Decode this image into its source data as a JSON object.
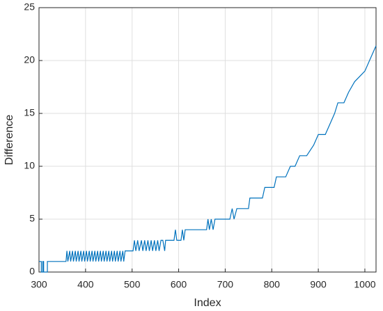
{
  "chart_data": {
    "type": "line",
    "xlabel": "Index",
    "ylabel": "Difference",
    "x": [
      300,
      305,
      305,
      308,
      308,
      310,
      310,
      318,
      318,
      358,
      360,
      362,
      366,
      368,
      372,
      374,
      378,
      380,
      384,
      386,
      390,
      392,
      396,
      398,
      402,
      404,
      408,
      410,
      414,
      416,
      420,
      422,
      426,
      428,
      432,
      434,
      438,
      440,
      444,
      446,
      450,
      452,
      456,
      458,
      462,
      464,
      468,
      470,
      474,
      476,
      480,
      482,
      485,
      502,
      505,
      508,
      512,
      515,
      520,
      523,
      527,
      530,
      534,
      537,
      541,
      544,
      548,
      551,
      555,
      558,
      562,
      566,
      570,
      572,
      590,
      593,
      596,
      605,
      608,
      611,
      614,
      618,
      660,
      663,
      666,
      670,
      674,
      678,
      710,
      715,
      719,
      725,
      750,
      753,
      780,
      785,
      805,
      810,
      830,
      840,
      850,
      860,
      875,
      890,
      900,
      915,
      925,
      935,
      942,
      955,
      965,
      978,
      1000,
      1010,
      1024
    ],
    "series": [
      {
        "name": "Difference",
        "color": "#0072bd",
        "values": [
          1,
          1,
          0,
          0,
          1,
          1,
          0,
          0,
          1,
          1,
          2,
          1,
          2,
          1,
          2,
          1,
          2,
          1,
          2,
          1,
          2,
          1,
          2,
          1,
          2,
          1,
          2,
          1,
          2,
          1,
          2,
          1,
          2,
          1,
          2,
          1,
          2,
          1,
          2,
          1,
          2,
          1,
          2,
          1,
          2,
          1,
          2,
          1,
          2,
          1,
          2,
          1,
          2,
          2,
          3,
          2,
          3,
          2,
          3,
          2,
          3,
          2,
          3,
          2,
          3,
          2,
          3,
          2,
          3,
          2,
          3,
          3,
          2,
          3,
          3,
          4,
          3,
          3,
          4,
          3,
          4,
          4,
          4,
          5,
          4,
          5,
          4,
          5,
          5,
          6,
          5,
          6,
          6,
          7,
          7,
          8,
          8,
          9,
          9,
          10,
          10,
          11,
          11,
          12,
          13,
          13,
          14,
          15,
          16,
          16,
          17,
          18,
          19,
          20,
          21.4
        ]
      }
    ],
    "xlim": [
      300,
      1024
    ],
    "xticks": [
      300,
      400,
      500,
      600,
      700,
      800,
      900,
      1000
    ],
    "ylim": [
      0,
      25
    ],
    "yticks": [
      0,
      5,
      10,
      15,
      20,
      25
    ],
    "grid": true
  }
}
